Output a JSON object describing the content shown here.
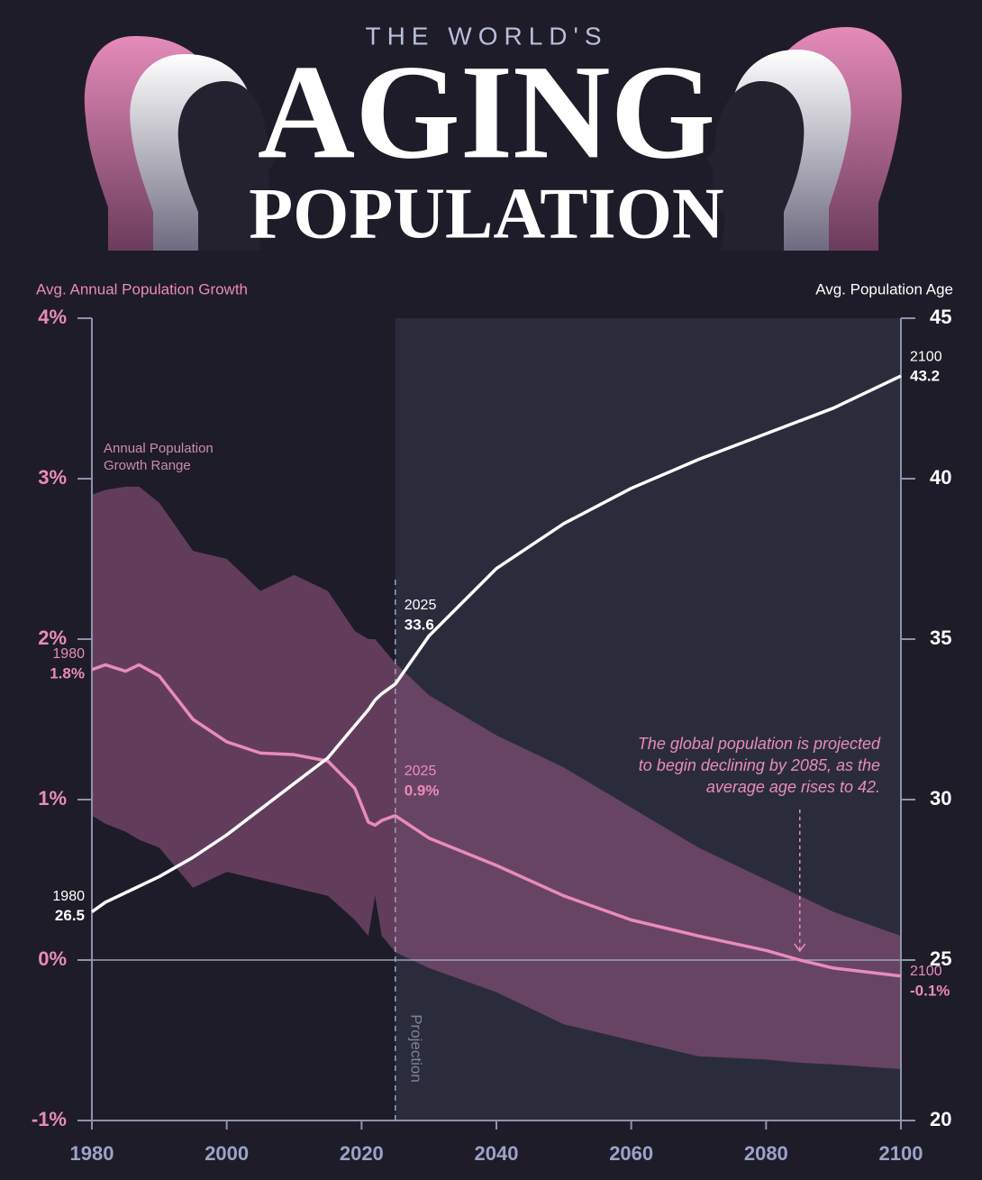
{
  "header": {
    "kicker": "THE WORLD'S",
    "title": "AGING",
    "subtitle": "POPULATION"
  },
  "chart_data": {
    "type": "line",
    "y_label": "Avg. Annual Population Growth",
    "y2_label": "Avg. Population Age",
    "x": [
      1980,
      1982,
      1985,
      1987,
      1990,
      1995,
      2000,
      2005,
      2010,
      2015,
      2019,
      2021,
      2022,
      2023,
      2025,
      2030,
      2040,
      2050,
      2060,
      2070,
      2080,
      2085,
      2090,
      2100
    ],
    "series": [
      {
        "name": "Avg. Annual Population Growth",
        "color": "#e98bbb",
        "axis": "y",
        "values": [
          1.81,
          1.84,
          1.8,
          1.84,
          1.77,
          1.5,
          1.36,
          1.29,
          1.28,
          1.24,
          1.07,
          0.86,
          0.84,
          0.87,
          0.9,
          0.76,
          0.59,
          0.4,
          0.25,
          0.15,
          0.06,
          0.0,
          -0.05,
          -0.1
        ],
        "value_labels": [
          "1.8%",
          null,
          null,
          null,
          null,
          null,
          null,
          null,
          null,
          null,
          null,
          null,
          null,
          null,
          "0.9%",
          null,
          null,
          null,
          null,
          null,
          null,
          null,
          null,
          "-0.1%"
        ]
      },
      {
        "name": "Avg. Population Age",
        "color": "#ffffff",
        "axis": "y2",
        "values": [
          26.5,
          26.8,
          27.1,
          27.3,
          27.6,
          28.2,
          28.9,
          29.7,
          30.5,
          31.3,
          32.3,
          32.8,
          33.1,
          33.3,
          33.6,
          35.1,
          37.2,
          38.6,
          39.7,
          40.6,
          41.4,
          41.8,
          42.2,
          43.2
        ],
        "value_labels": [
          "26.5",
          null,
          null,
          null,
          null,
          null,
          null,
          null,
          null,
          null,
          null,
          null,
          null,
          null,
          "33.6",
          null,
          null,
          null,
          null,
          null,
          null,
          null,
          null,
          "43.2"
        ]
      },
      {
        "name": "Annual Population Growth Range",
        "color": "#9a5a85",
        "type": "band",
        "axis": "y",
        "upper": [
          2.9,
          2.93,
          2.95,
          2.95,
          2.85,
          2.55,
          2.5,
          2.3,
          2.4,
          2.3,
          2.05,
          2.0,
          2.0,
          1.95,
          1.85,
          1.65,
          1.4,
          1.2,
          0.95,
          0.7,
          0.5,
          0.4,
          0.3,
          0.15
        ],
        "lower": [
          0.9,
          0.85,
          0.8,
          0.75,
          0.7,
          0.45,
          0.55,
          0.5,
          0.45,
          0.4,
          0.25,
          0.15,
          0.4,
          0.15,
          0.05,
          -0.05,
          -0.2,
          -0.4,
          -0.5,
          -0.6,
          -0.62,
          -0.64,
          -0.65,
          -0.68
        ]
      }
    ],
    "xlim": [
      1980,
      2100
    ],
    "xticks": [
      1980,
      2000,
      2020,
      2040,
      2060,
      2080,
      2100
    ],
    "ylim": [
      -1,
      4
    ],
    "yticks": [
      {
        "value": -1,
        "label": "-1%"
      },
      {
        "value": 0,
        "label": "0%"
      },
      {
        "value": 1,
        "label": "1%"
      },
      {
        "value": 2,
        "label": "2%"
      },
      {
        "value": 3,
        "label": "3%"
      },
      {
        "value": 4,
        "label": "4%"
      }
    ],
    "y2lim": [
      20,
      45
    ],
    "y2ticks": [
      20,
      25,
      30,
      35,
      40,
      45
    ],
    "projection": {
      "x": 2025,
      "label": "Projection"
    },
    "annotation": {
      "lines": [
        "The global population is projected",
        "to begin declining by 2085, as the",
        "average age rises to 42."
      ],
      "x": 2085,
      "y": 0
    }
  }
}
